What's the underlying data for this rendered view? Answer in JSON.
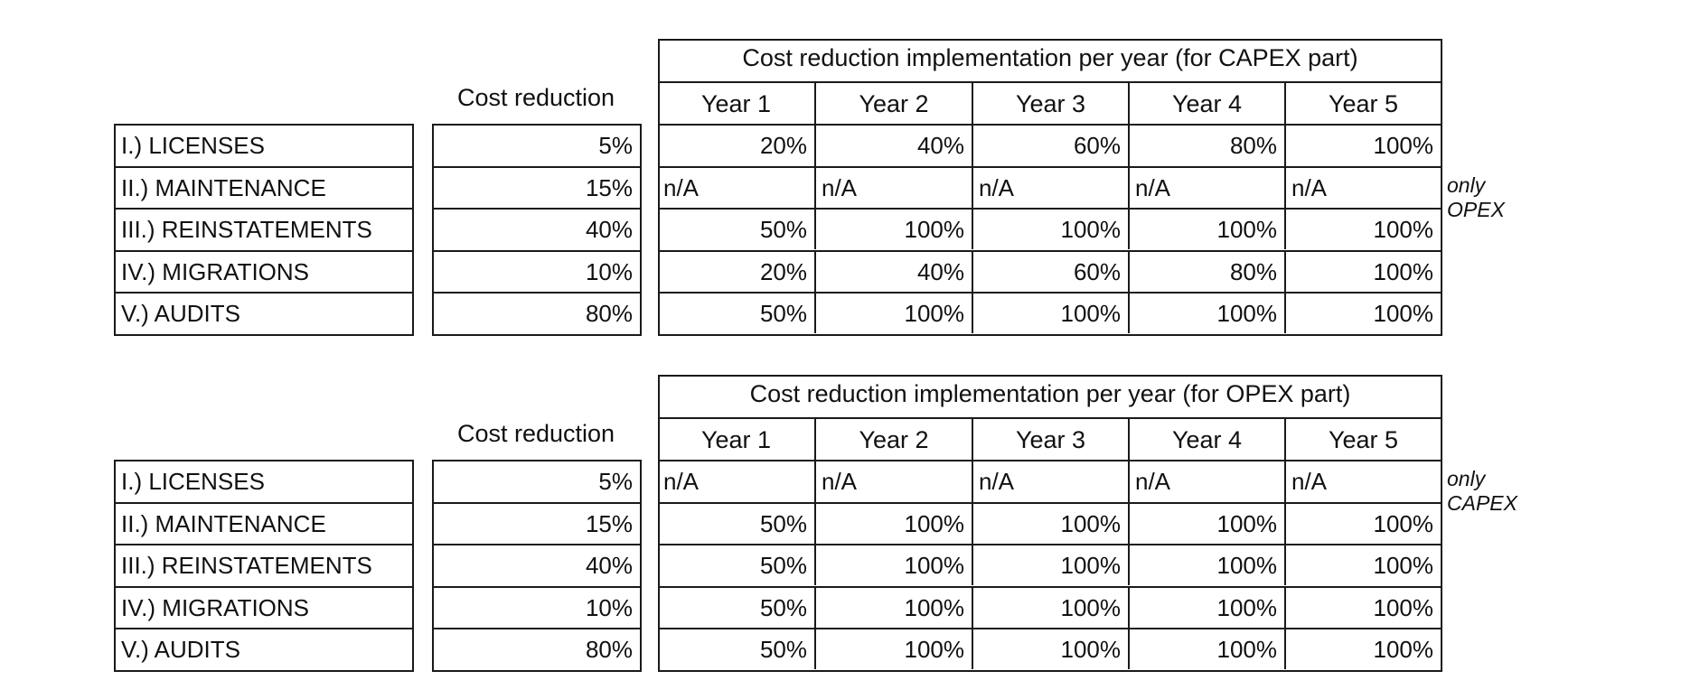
{
  "tables": [
    {
      "title": "Cost reduction implementation per year (for CAPEX part)",
      "cost_reduction_header": "Cost reduction",
      "years": [
        "Year 1",
        "Year 2",
        "Year 3",
        "Year 4",
        "Year 5"
      ],
      "rows": [
        {
          "label": "I.) LICENSES",
          "cost_reduction": "5%",
          "values": [
            "20%",
            "40%",
            "60%",
            "80%",
            "100%"
          ],
          "note": ""
        },
        {
          "label": "II.) MAINTENANCE",
          "cost_reduction": "15%",
          "values": [
            "n/A",
            "n/A",
            "n/A",
            "n/A",
            "n/A"
          ],
          "note": "only OPEX"
        },
        {
          "label": "III.) REINSTATEMENTS",
          "cost_reduction": "40%",
          "values": [
            "50%",
            "100%",
            "100%",
            "100%",
            "100%"
          ],
          "note": ""
        },
        {
          "label": "IV.) MIGRATIONS",
          "cost_reduction": "10%",
          "values": [
            "20%",
            "40%",
            "60%",
            "80%",
            "100%"
          ],
          "note": ""
        },
        {
          "label": "V.) AUDITS",
          "cost_reduction": "80%",
          "values": [
            "50%",
            "100%",
            "100%",
            "100%",
            "100%"
          ],
          "note": ""
        }
      ]
    },
    {
      "title": "Cost reduction implementation per year (for OPEX part)",
      "cost_reduction_header": "Cost reduction",
      "years": [
        "Year 1",
        "Year 2",
        "Year 3",
        "Year 4",
        "Year 5"
      ],
      "rows": [
        {
          "label": "I.) LICENSES",
          "cost_reduction": "5%",
          "values": [
            "n/A",
            "n/A",
            "n/A",
            "n/A",
            "n/A"
          ],
          "note": "only CAPEX"
        },
        {
          "label": "II.) MAINTENANCE",
          "cost_reduction": "15%",
          "values": [
            "50%",
            "100%",
            "100%",
            "100%",
            "100%"
          ],
          "note": ""
        },
        {
          "label": "III.) REINSTATEMENTS",
          "cost_reduction": "40%",
          "values": [
            "50%",
            "100%",
            "100%",
            "100%",
            "100%"
          ],
          "note": ""
        },
        {
          "label": "IV.) MIGRATIONS",
          "cost_reduction": "10%",
          "values": [
            "50%",
            "100%",
            "100%",
            "100%",
            "100%"
          ],
          "note": ""
        },
        {
          "label": "V.) AUDITS",
          "cost_reduction": "80%",
          "values": [
            "50%",
            "100%",
            "100%",
            "100%",
            "100%"
          ],
          "note": ""
        }
      ]
    }
  ]
}
